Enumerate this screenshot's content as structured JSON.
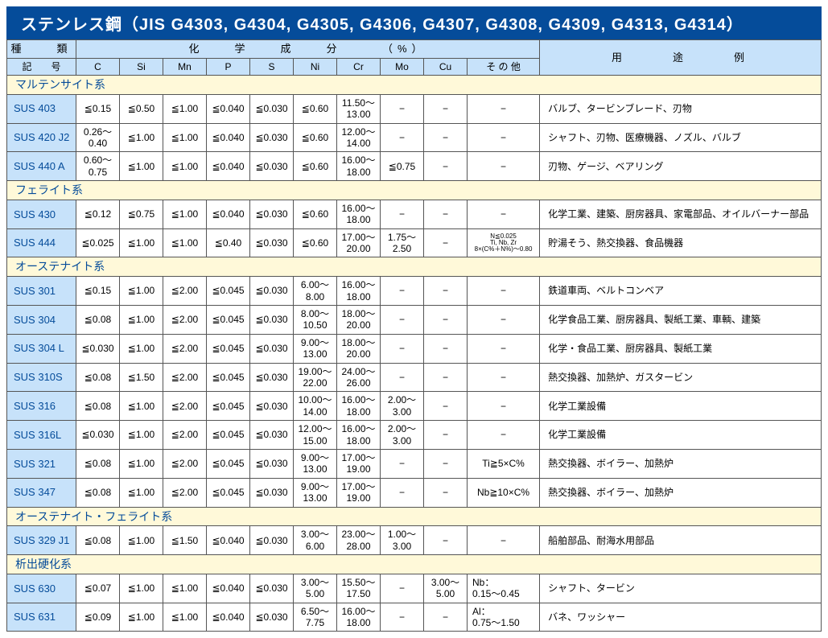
{
  "colors": {
    "title_bg": "#054c9a",
    "title_fg": "#ffffff",
    "header_bg": "#c7e2fa",
    "section_bg": "#fff9d9",
    "section_fg": "#054c9a",
    "border": "#555555",
    "page_bg": "#ffffff"
  },
  "title": "ステンレス鋼（JIS G4303, G4304, G4305, G4306, G4307, G4308, G4309, G4313, G4314）",
  "header": {
    "type_label": "種　　類",
    "symbol_label": "記　　号",
    "chem_label": "化　　学　　成　　分　　　（%）",
    "use_label": "用　　　途　　　例",
    "cols": [
      "C",
      "Si",
      "Mn",
      "P",
      "S",
      "Ni",
      "Cr",
      "Mo",
      "Cu",
      "そ の 他"
    ]
  },
  "sections": [
    {
      "name": "マルテンサイト系",
      "rows": [
        {
          "grade": "SUS 403",
          "c": "≦0.15",
          "si": "≦0.50",
          "mn": "≦1.00",
          "p": "≦0.040",
          "s": "≦0.030",
          "ni": "≦0.60",
          "cr": "11.50～\n13.00",
          "mo": "−",
          "cu": "−",
          "other": "−",
          "use": "バルブ、タービンブレード、刃物"
        },
        {
          "grade": "SUS 420 J2",
          "c": "0.26～\n0.40",
          "si": "≦1.00",
          "mn": "≦1.00",
          "p": "≦0.040",
          "s": "≦0.030",
          "ni": "≦0.60",
          "cr": "12.00～\n14.00",
          "mo": "−",
          "cu": "−",
          "other": "−",
          "use": "シャフト、刃物、医療機器、ノズル、バルブ"
        },
        {
          "grade": "SUS 440 A",
          "c": "0.60～\n0.75",
          "si": "≦1.00",
          "mn": "≦1.00",
          "p": "≦0.040",
          "s": "≦0.030",
          "ni": "≦0.60",
          "cr": "16.00～\n18.00",
          "mo": "≦0.75",
          "cu": "−",
          "other": "−",
          "use": "刃物、ゲージ、ベアリング"
        }
      ]
    },
    {
      "name": "フェライト系",
      "rows": [
        {
          "grade": "SUS 430",
          "c": "≦0.12",
          "si": "≦0.75",
          "mn": "≦1.00",
          "p": "≦0.040",
          "s": "≦0.030",
          "ni": "≦0.60",
          "cr": "16.00～\n18.00",
          "mo": "−",
          "cu": "−",
          "other": "−",
          "use": "化学工業、建築、厨房器具、家電部品、オイルバーナー部品"
        },
        {
          "grade": "SUS 444",
          "c": "≦0.025",
          "si": "≦1.00",
          "mn": "≦1.00",
          "p": "≦0.40",
          "s": "≦0.030",
          "ni": "≦0.60",
          "cr": "17.00～\n20.00",
          "mo": "1.75～\n2.50",
          "cu": "−",
          "other": "N≦0.025\nTi, Nb, Zr\n8×(C%＋N%)～0.80",
          "other_tiny": true,
          "use": "貯湯そう、熱交換器、食品機器"
        }
      ]
    },
    {
      "name": "オーステナイト系",
      "rows": [
        {
          "grade": "SUS 301",
          "c": "≦0.15",
          "si": "≦1.00",
          "mn": "≦2.00",
          "p": "≦0.045",
          "s": "≦0.030",
          "ni": "6.00～\n8.00",
          "cr": "16.00～\n18.00",
          "mo": "−",
          "cu": "−",
          "other": "−",
          "use": "鉄道車両、ベルトコンベア"
        },
        {
          "grade": "SUS 304",
          "c": "≦0.08",
          "si": "≦1.00",
          "mn": "≦2.00",
          "p": "≦0.045",
          "s": "≦0.030",
          "ni": "8.00～\n10.50",
          "cr": "18.00～\n20.00",
          "mo": "−",
          "cu": "−",
          "other": "−",
          "use": "化学食品工業、厨房器具、製紙工業、車輌、建築"
        },
        {
          "grade": "SUS 304 L",
          "c": "≦0.030",
          "si": "≦1.00",
          "mn": "≦2.00",
          "p": "≦0.045",
          "s": "≦0.030",
          "ni": "9.00～\n13.00",
          "cr": "18.00～\n20.00",
          "mo": "−",
          "cu": "−",
          "other": "−",
          "use": "化学・食品工業、厨房器具、製紙工業"
        },
        {
          "grade": "SUS 310S",
          "c": "≦0.08",
          "si": "≦1.50",
          "mn": "≦2.00",
          "p": "≦0.045",
          "s": "≦0.030",
          "ni": "19.00～\n22.00",
          "cr": "24.00～\n26.00",
          "mo": "−",
          "cu": "−",
          "other": "−",
          "use": "熱交換器、加熱炉、ガスタービン"
        },
        {
          "grade": "SUS 316",
          "c": "≦0.08",
          "si": "≦1.00",
          "mn": "≦2.00",
          "p": "≦0.045",
          "s": "≦0.030",
          "ni": "10.00～\n14.00",
          "cr": "16.00～\n18.00",
          "mo": "2.00～\n3.00",
          "cu": "−",
          "other": "−",
          "use": "化学工業設備"
        },
        {
          "grade": "SUS 316L",
          "c": "≦0.030",
          "si": "≦1.00",
          "mn": "≦2.00",
          "p": "≦0.045",
          "s": "≦0.030",
          "ni": "12.00～\n15.00",
          "cr": "16.00～\n18.00",
          "mo": "2.00～\n3.00",
          "cu": "−",
          "other": "−",
          "use": "化学工業設備"
        },
        {
          "grade": "SUS 321",
          "c": "≦0.08",
          "si": "≦1.00",
          "mn": "≦2.00",
          "p": "≦0.045",
          "s": "≦0.030",
          "ni": "9.00～\n13.00",
          "cr": "17.00～\n19.00",
          "mo": "−",
          "cu": "−",
          "other": "Ti≧5×C%",
          "use": "熱交換器、ボイラー、加熱炉"
        },
        {
          "grade": "SUS 347",
          "c": "≦0.08",
          "si": "≦1.00",
          "mn": "≦2.00",
          "p": "≦0.045",
          "s": "≦0.030",
          "ni": "9.00～\n13.00",
          "cr": "17.00～\n19.00",
          "mo": "−",
          "cu": "−",
          "other": "Nb≧10×C%",
          "use": "熱交換器、ボイラー、加熱炉"
        }
      ]
    },
    {
      "name": "オーステナイト・フェライト系",
      "rows": [
        {
          "grade": "SUS 329 J1",
          "c": "≦0.08",
          "si": "≦1.00",
          "mn": "≦1.50",
          "p": "≦0.040",
          "s": "≦0.030",
          "ni": "3.00～\n6.00",
          "cr": "23.00～\n28.00",
          "mo": "1.00～\n3.00",
          "cu": "−",
          "other": "−",
          "use": "船舶部品、耐海水用部品"
        }
      ]
    },
    {
      "name": "析出硬化系",
      "rows": [
        {
          "grade": "SUS 630",
          "c": "≦0.07",
          "si": "≦1.00",
          "mn": "≦1.00",
          "p": "≦0.040",
          "s": "≦0.030",
          "ni": "3.00～\n5.00",
          "cr": "15.50～\n17.50",
          "mo": "−",
          "cu": "3.00～\n5.00",
          "other": "Nb：\n0.15～0.45",
          "use": "シャフト、タービン"
        },
        {
          "grade": "SUS 631",
          "c": "≦0.09",
          "si": "≦1.00",
          "mn": "≦1.00",
          "p": "≦0.040",
          "s": "≦0.030",
          "ni": "6.50～\n7.75",
          "cr": "16.00～\n18.00",
          "mo": "−",
          "cu": "−",
          "other": "Al：\n0.75～1.50",
          "use": "バネ、ワッシャー"
        }
      ]
    }
  ]
}
